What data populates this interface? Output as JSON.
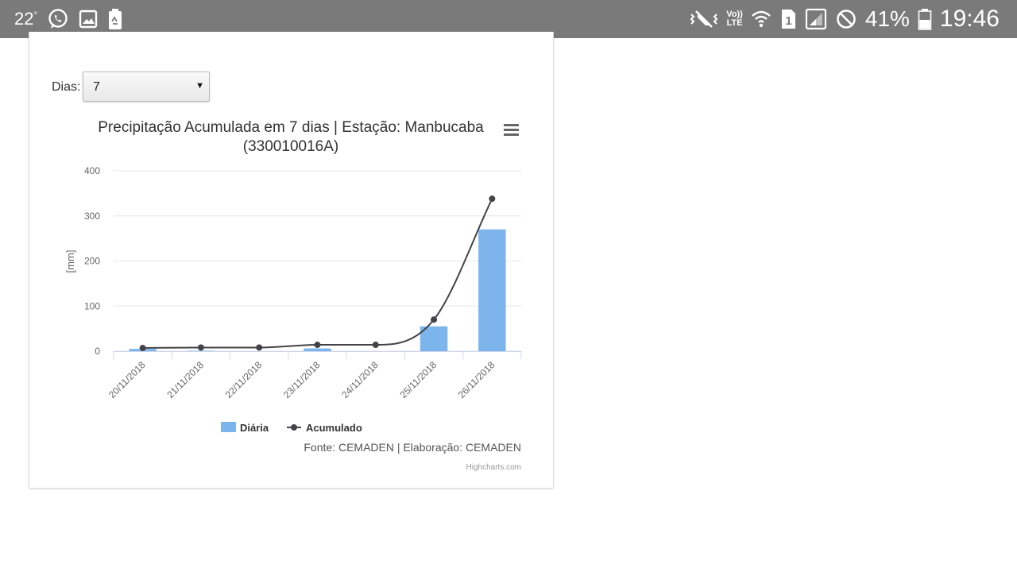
{
  "status_bar": {
    "temperature": "22",
    "temperature_unit": "°",
    "network_label_top": "Vo))",
    "network_label_bottom": "LTE",
    "sim_slot": "1",
    "battery_percent": "41%",
    "time": "19:46",
    "icons": [
      "whatsapp-icon",
      "image-icon",
      "battery-saver-icon",
      "vibrate-icon",
      "wifi-icon",
      "signal-icon",
      "do-not-disturb-icon",
      "battery-icon"
    ]
  },
  "filter": {
    "label": "Dias:",
    "selected": "7"
  },
  "chart_menu_icon": "hamburger-menu-icon",
  "chart_data": {
    "type": "bar",
    "title_line1": "Precipitação Acumulada em 7 dias | Estação: Manbucaba",
    "title_line2": "(330010016A)",
    "ylabel": "[mm]",
    "ylim": [
      0,
      400
    ],
    "yticks": [
      "0",
      "100",
      "200",
      "300",
      "400"
    ],
    "categories": [
      "20/11/2018",
      "21/11/2018",
      "22/11/2018",
      "23/11/2018",
      "24/11/2018",
      "25/11/2018",
      "26/11/2018"
    ],
    "series": [
      {
        "name": "Diária",
        "type": "bar",
        "color": "#7cb5ec",
        "values": [
          5,
          1,
          0,
          6,
          0,
          55,
          270
        ]
      },
      {
        "name": "Acumulado",
        "type": "line",
        "color": "#434348",
        "values": [
          7,
          8,
          8,
          14,
          14,
          70,
          338
        ]
      }
    ],
    "credits_source": "Fonte: CEMADEN | Elaboração: CEMADEN",
    "credits_highcharts": "Highcharts.com"
  }
}
